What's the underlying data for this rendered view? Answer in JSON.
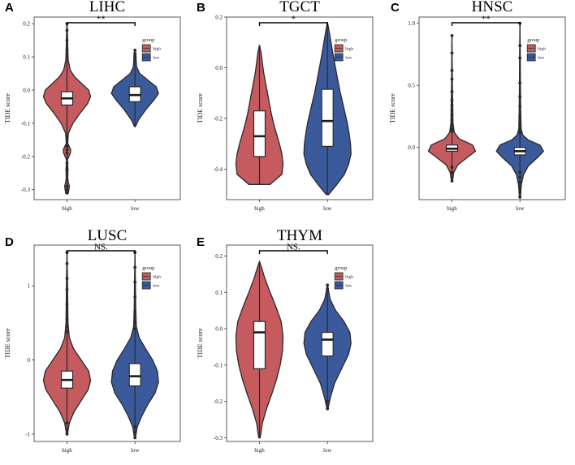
{
  "colors": {
    "high": "#c55a5f",
    "low": "#3b5a9b"
  },
  "chart_data": [
    {
      "letter": "A",
      "type": "violin",
      "title": "LIHC",
      "ylabel": "TIDE score",
      "categories": [
        "high",
        "low"
      ],
      "significance": "**",
      "ylim": [
        -0.33,
        0.22
      ],
      "yticks": [
        {
          "v": 0.2,
          "label": "0.2"
        },
        {
          "v": 0.1,
          "label": "0.1"
        },
        {
          "v": 0.0,
          "label": "0.0"
        },
        {
          "v": -0.1,
          "label": "-0.1"
        },
        {
          "v": -0.2,
          "label": "-0.2"
        },
        {
          "v": -0.3,
          "label": "-0.3"
        }
      ],
      "legend": {
        "title": "group",
        "items": [
          "high",
          "low"
        ]
      },
      "groups": [
        {
          "name": "high",
          "q1": -0.045,
          "median": -0.025,
          "q3": -0.005,
          "wlow": -0.12,
          "whigh": 0.085,
          "min": -0.31,
          "max": 0.2,
          "outliers": [
            0.2,
            0.18,
            0.15,
            0.12,
            -0.14,
            -0.17,
            -0.18,
            -0.19,
            -0.22,
            -0.24,
            -0.27,
            -0.29,
            -0.3,
            -0.31
          ],
          "profile": [
            [
              -0.31,
              0.06
            ],
            [
              -0.29,
              0.1
            ],
            [
              -0.27,
              0.03
            ],
            [
              -0.24,
              0.04
            ],
            [
              -0.21,
              0.02
            ],
            [
              -0.19,
              0.14
            ],
            [
              -0.18,
              0.16
            ],
            [
              -0.16,
              0.03
            ],
            [
              -0.13,
              0.06
            ],
            [
              -0.1,
              0.25
            ],
            [
              -0.07,
              0.55
            ],
            [
              -0.04,
              0.88
            ],
            [
              -0.02,
              1.0
            ],
            [
              0.0,
              0.92
            ],
            [
              0.02,
              0.62
            ],
            [
              0.04,
              0.32
            ],
            [
              0.06,
              0.14
            ],
            [
              0.09,
              0.05
            ],
            [
              0.13,
              0.03
            ],
            [
              0.17,
              0.02
            ],
            [
              0.2,
              0.0
            ]
          ]
        },
        {
          "name": "low",
          "q1": -0.035,
          "median": -0.015,
          "q3": 0.01,
          "wlow": -0.105,
          "whigh": 0.07,
          "min": -0.11,
          "max": 0.12,
          "outliers": [
            0.12,
            0.11,
            0.1,
            0.09
          ],
          "profile": [
            [
              -0.11,
              0.02
            ],
            [
              -0.09,
              0.15
            ],
            [
              -0.06,
              0.45
            ],
            [
              -0.03,
              0.8
            ],
            [
              -0.01,
              1.0
            ],
            [
              0.01,
              0.9
            ],
            [
              0.03,
              0.55
            ],
            [
              0.05,
              0.2
            ],
            [
              0.07,
              0.07
            ],
            [
              0.09,
              0.05
            ],
            [
              0.11,
              0.04
            ],
            [
              0.12,
              0.0
            ]
          ]
        }
      ]
    },
    {
      "letter": "B",
      "type": "violin",
      "title": "TGCT",
      "ylabel": "TIDE score",
      "categories": [
        "high",
        "low"
      ],
      "significance": "*",
      "ylim": [
        -0.52,
        0.2
      ],
      "yticks": [
        {
          "v": 0.2,
          "label": "0.2"
        },
        {
          "v": 0.0,
          "label": "0.0"
        },
        {
          "v": -0.2,
          "label": "-0.2"
        },
        {
          "v": -0.4,
          "label": "-0.4"
        }
      ],
      "legend": {
        "title": "group",
        "items": [
          "high",
          "low"
        ]
      },
      "groups": [
        {
          "name": "high",
          "q1": -0.35,
          "median": -0.27,
          "q3": -0.17,
          "wlow": -0.46,
          "whigh": 0.09,
          "min": -0.46,
          "max": 0.09,
          "outliers": [],
          "profile": [
            [
              -0.46,
              0.45
            ],
            [
              -0.42,
              0.95
            ],
            [
              -0.38,
              1.0
            ],
            [
              -0.34,
              0.95
            ],
            [
              -0.3,
              0.85
            ],
            [
              -0.26,
              0.72
            ],
            [
              -0.22,
              0.6
            ],
            [
              -0.18,
              0.5
            ],
            [
              -0.14,
              0.42
            ],
            [
              -0.1,
              0.34
            ],
            [
              -0.06,
              0.26
            ],
            [
              -0.02,
              0.18
            ],
            [
              0.02,
              0.12
            ],
            [
              0.06,
              0.07
            ],
            [
              0.09,
              0.0
            ]
          ]
        },
        {
          "name": "low",
          "q1": -0.31,
          "median": -0.21,
          "q3": -0.085,
          "wlow": -0.5,
          "whigh": 0.18,
          "min": -0.5,
          "max": 0.18,
          "outliers": [],
          "profile": [
            [
              -0.5,
              0.05
            ],
            [
              -0.46,
              0.4
            ],
            [
              -0.42,
              0.72
            ],
            [
              -0.38,
              0.9
            ],
            [
              -0.34,
              1.0
            ],
            [
              -0.3,
              0.98
            ],
            [
              -0.26,
              0.92
            ],
            [
              -0.22,
              0.85
            ],
            [
              -0.18,
              0.75
            ],
            [
              -0.14,
              0.65
            ],
            [
              -0.1,
              0.55
            ],
            [
              -0.05,
              0.44
            ],
            [
              0.0,
              0.34
            ],
            [
              0.05,
              0.24
            ],
            [
              0.1,
              0.15
            ],
            [
              0.14,
              0.08
            ],
            [
              0.18,
              0.0
            ]
          ]
        }
      ]
    },
    {
      "letter": "C",
      "type": "violin",
      "title": "HNSC",
      "ylabel": "TIDE score",
      "categories": [
        "high",
        "low"
      ],
      "significance": "**",
      "ylim": [
        -0.42,
        1.05
      ],
      "yticks": [
        {
          "v": 1.0,
          "label": "1.0"
        },
        {
          "v": 0.5,
          "label": "0.5"
        },
        {
          "v": 0.0,
          "label": "0.0"
        }
      ],
      "legend": {
        "title": "group",
        "items": [
          "high",
          "low"
        ]
      },
      "groups": [
        {
          "name": "high",
          "q1": -0.03,
          "median": -0.01,
          "q3": 0.02,
          "wlow": -0.13,
          "whigh": 0.11,
          "min": -0.27,
          "max": 0.9,
          "outliers": [
            0.9,
            0.76,
            0.62,
            0.55,
            0.45,
            0.38,
            0.34,
            0.3,
            0.26,
            0.22,
            0.18,
            0.15,
            0.13,
            -0.16,
            -0.2,
            -0.24,
            -0.27
          ],
          "profile": [
            [
              -0.27,
              0.02
            ],
            [
              -0.2,
              0.08
            ],
            [
              -0.14,
              0.25
            ],
            [
              -0.08,
              0.65
            ],
            [
              -0.03,
              1.0
            ],
            [
              0.02,
              0.88
            ],
            [
              0.07,
              0.3
            ],
            [
              0.12,
              0.1
            ],
            [
              0.2,
              0.04
            ],
            [
              0.35,
              0.03
            ],
            [
              0.45,
              0.02
            ],
            [
              0.6,
              0.015
            ],
            [
              0.9,
              0.0
            ]
          ]
        },
        {
          "name": "low",
          "q1": -0.06,
          "median": -0.03,
          "q3": 0.0,
          "wlow": -0.16,
          "whigh": 0.09,
          "min": -0.4,
          "max": 1.0,
          "outliers": [
            1.0,
            0.82,
            0.72,
            0.52,
            0.41,
            0.33,
            0.25,
            0.19,
            0.15,
            0.12,
            -0.2,
            -0.24,
            -0.28,
            -0.32,
            -0.36,
            -0.4
          ],
          "profile": [
            [
              -0.4,
              0.02
            ],
            [
              -0.3,
              0.06
            ],
            [
              -0.22,
              0.15
            ],
            [
              -0.15,
              0.35
            ],
            [
              -0.08,
              0.75
            ],
            [
              -0.03,
              1.0
            ],
            [
              0.02,
              0.85
            ],
            [
              0.06,
              0.35
            ],
            [
              0.1,
              0.12
            ],
            [
              0.15,
              0.05
            ],
            [
              0.3,
              0.03
            ],
            [
              0.5,
              0.02
            ],
            [
              0.75,
              0.015
            ],
            [
              1.0,
              0.0
            ]
          ]
        }
      ]
    },
    {
      "letter": "D",
      "type": "violin",
      "title": "LUSC",
      "ylabel": "TIDE score",
      "categories": [
        "high",
        "low"
      ],
      "significance": "NS.",
      "ylim": [
        -1.1,
        1.55
      ],
      "yticks": [
        {
          "v": 1.0,
          "label": "1"
        },
        {
          "v": 0.0,
          "label": "0"
        },
        {
          "v": -1.0,
          "label": "-1"
        }
      ],
      "legend": {
        "title": "group",
        "items": [
          "high",
          "low"
        ]
      },
      "groups": [
        {
          "name": "high",
          "q1": -0.38,
          "median": -0.27,
          "q3": -0.15,
          "wlow": -0.8,
          "whigh": 0.3,
          "min": -1.0,
          "max": 1.45,
          "outliers": [
            1.45,
            1.3,
            1.1,
            0.95,
            0.75,
            0.55,
            0.45,
            0.38,
            -0.85,
            -0.95,
            -1.0
          ],
          "profile": [
            [
              -1.0,
              0.02
            ],
            [
              -0.85,
              0.1
            ],
            [
              -0.7,
              0.3
            ],
            [
              -0.55,
              0.6
            ],
            [
              -0.4,
              0.9
            ],
            [
              -0.28,
              1.0
            ],
            [
              -0.15,
              0.92
            ],
            [
              0.0,
              0.6
            ],
            [
              0.15,
              0.28
            ],
            [
              0.3,
              0.1
            ],
            [
              0.5,
              0.04
            ],
            [
              0.8,
              0.03
            ],
            [
              1.1,
              0.02
            ],
            [
              1.45,
              0.0
            ]
          ]
        },
        {
          "name": "low",
          "q1": -0.35,
          "median": -0.22,
          "q3": -0.05,
          "wlow": -0.85,
          "whigh": 0.35,
          "min": -1.05,
          "max": 1.45,
          "outliers": [
            1.45,
            1.25,
            1.05,
            0.85,
            0.65,
            0.5,
            0.42,
            -0.9,
            -0.98,
            -1.05
          ],
          "profile": [
            [
              -1.05,
              0.02
            ],
            [
              -0.9,
              0.1
            ],
            [
              -0.75,
              0.3
            ],
            [
              -0.6,
              0.55
            ],
            [
              -0.45,
              0.85
            ],
            [
              -0.3,
              1.0
            ],
            [
              -0.15,
              0.95
            ],
            [
              0.0,
              0.75
            ],
            [
              0.15,
              0.45
            ],
            [
              0.3,
              0.18
            ],
            [
              0.45,
              0.06
            ],
            [
              0.7,
              0.03
            ],
            [
              1.0,
              0.02
            ],
            [
              1.45,
              0.0
            ]
          ]
        }
      ]
    },
    {
      "letter": "E",
      "type": "violin",
      "title": "THYM",
      "ylabel": "TIDE score",
      "categories": [
        "high",
        "low"
      ],
      "significance": "NS.",
      "ylim": [
        -0.31,
        0.23
      ],
      "yticks": [
        {
          "v": 0.2,
          "label": "0.2"
        },
        {
          "v": 0.1,
          "label": "0.1"
        },
        {
          "v": 0.0,
          "label": "0.0"
        },
        {
          "v": -0.1,
          "label": "-0.1"
        },
        {
          "v": -0.2,
          "label": "-0.2"
        },
        {
          "v": -0.3,
          "label": "-0.3"
        }
      ],
      "legend": {
        "title": "group",
        "items": [
          "high",
          "low"
        ]
      },
      "groups": [
        {
          "name": "high",
          "q1": -0.11,
          "median": -0.01,
          "q3": 0.02,
          "wlow": -0.3,
          "whigh": 0.185,
          "min": -0.3,
          "max": 0.185,
          "outliers": [],
          "profile": [
            [
              -0.3,
              0.03
            ],
            [
              -0.26,
              0.12
            ],
            [
              -0.22,
              0.3
            ],
            [
              -0.18,
              0.52
            ],
            [
              -0.14,
              0.72
            ],
            [
              -0.1,
              0.88
            ],
            [
              -0.06,
              0.98
            ],
            [
              -0.02,
              1.0
            ],
            [
              0.02,
              0.92
            ],
            [
              0.06,
              0.7
            ],
            [
              0.1,
              0.45
            ],
            [
              0.14,
              0.22
            ],
            [
              0.17,
              0.08
            ],
            [
              0.185,
              0.0
            ]
          ]
        },
        {
          "name": "low",
          "q1": -0.075,
          "median": -0.03,
          "q3": -0.01,
          "wlow": -0.22,
          "whigh": 0.12,
          "min": -0.22,
          "max": 0.12,
          "outliers": [
            0.12,
            0.11,
            -0.2,
            -0.22
          ],
          "profile": [
            [
              -0.22,
              0.02
            ],
            [
              -0.19,
              0.12
            ],
            [
              -0.15,
              0.3
            ],
            [
              -0.11,
              0.6
            ],
            [
              -0.07,
              0.9
            ],
            [
              -0.04,
              1.0
            ],
            [
              -0.01,
              0.95
            ],
            [
              0.02,
              0.7
            ],
            [
              0.05,
              0.35
            ],
            [
              0.08,
              0.12
            ],
            [
              0.1,
              0.06
            ],
            [
              0.12,
              0.0
            ]
          ]
        }
      ]
    }
  ]
}
